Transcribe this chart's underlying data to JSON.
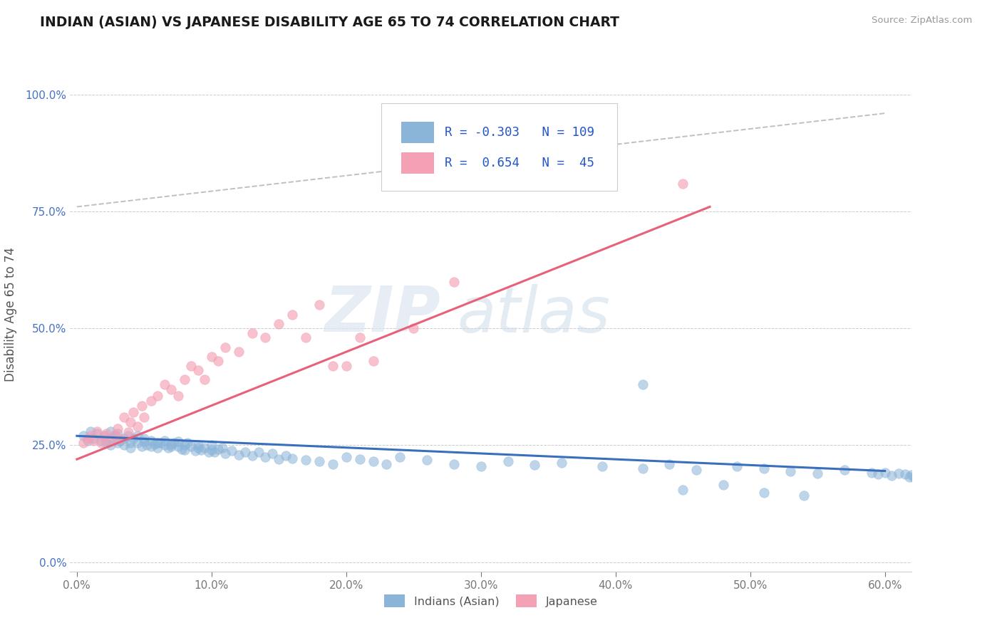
{
  "title": "INDIAN (ASIAN) VS JAPANESE DISABILITY AGE 65 TO 74 CORRELATION CHART",
  "source": "Source: ZipAtlas.com",
  "ylabel": "Disability Age 65 to 74",
  "xlim": [
    -0.005,
    0.62
  ],
  "ylim": [
    -0.02,
    1.08
  ],
  "xtick_labels": [
    "0.0%",
    "10.0%",
    "20.0%",
    "30.0%",
    "40.0%",
    "50.0%",
    "60.0%"
  ],
  "xtick_values": [
    0.0,
    0.1,
    0.2,
    0.3,
    0.4,
    0.5,
    0.6
  ],
  "ytick_labels": [
    "0.0%",
    "25.0%",
    "50.0%",
    "75.0%",
    "100.0%"
  ],
  "ytick_values": [
    0.0,
    0.25,
    0.5,
    0.75,
    1.0
  ],
  "blue_color": "#8ab4d8",
  "pink_color": "#f4a0b5",
  "blue_line_color": "#3a6fbd",
  "pink_line_color": "#e8607a",
  "watermark_zip": "ZIP",
  "watermark_atlas": "atlas",
  "legend_r_blue": "-0.303",
  "legend_n_blue": "109",
  "legend_r_pink": "0.654",
  "legend_n_pink": "45",
  "legend_label_blue": "Indians (Asian)",
  "legend_label_pink": "Japanese",
  "blue_trend_x": [
    0.0,
    0.6
  ],
  "blue_trend_y": [
    0.27,
    0.195
  ],
  "pink_trend_x": [
    0.0,
    0.47
  ],
  "pink_trend_y": [
    0.22,
    0.76
  ],
  "grey_trend_x": [
    0.0,
    0.6
  ],
  "grey_trend_y": [
    0.76,
    0.96
  ],
  "blue_scatter_x": [
    0.005,
    0.008,
    0.01,
    0.012,
    0.015,
    0.018,
    0.02,
    0.022,
    0.025,
    0.025,
    0.025,
    0.028,
    0.03,
    0.03,
    0.032,
    0.035,
    0.035,
    0.038,
    0.04,
    0.04,
    0.042,
    0.045,
    0.045,
    0.048,
    0.05,
    0.05,
    0.052,
    0.055,
    0.055,
    0.058,
    0.06,
    0.06,
    0.062,
    0.065,
    0.065,
    0.068,
    0.07,
    0.07,
    0.072,
    0.075,
    0.075,
    0.078,
    0.08,
    0.08,
    0.082,
    0.085,
    0.088,
    0.09,
    0.09,
    0.092,
    0.095,
    0.098,
    0.1,
    0.1,
    0.102,
    0.105,
    0.108,
    0.11,
    0.115,
    0.12,
    0.125,
    0.13,
    0.135,
    0.14,
    0.145,
    0.15,
    0.155,
    0.16,
    0.17,
    0.18,
    0.19,
    0.2,
    0.21,
    0.22,
    0.23,
    0.24,
    0.26,
    0.28,
    0.3,
    0.32,
    0.34,
    0.36,
    0.39,
    0.42,
    0.44,
    0.46,
    0.49,
    0.51,
    0.53,
    0.55,
    0.57,
    0.59,
    0.595,
    0.6,
    0.605,
    0.61,
    0.615,
    0.618,
    0.62,
    0.622,
    0.625,
    0.628,
    0.63,
    0.42,
    0.45,
    0.48,
    0.51,
    0.54
  ],
  "blue_scatter_y": [
    0.27,
    0.26,
    0.28,
    0.265,
    0.275,
    0.26,
    0.27,
    0.255,
    0.265,
    0.28,
    0.25,
    0.27,
    0.255,
    0.275,
    0.26,
    0.265,
    0.25,
    0.27,
    0.255,
    0.245,
    0.265,
    0.255,
    0.27,
    0.248,
    0.258,
    0.265,
    0.25,
    0.26,
    0.248,
    0.252,
    0.256,
    0.245,
    0.255,
    0.25,
    0.26,
    0.245,
    0.252,
    0.248,
    0.255,
    0.248,
    0.258,
    0.242,
    0.25,
    0.24,
    0.255,
    0.248,
    0.238,
    0.245,
    0.25,
    0.24,
    0.245,
    0.235,
    0.24,
    0.25,
    0.235,
    0.242,
    0.245,
    0.232,
    0.238,
    0.23,
    0.236,
    0.228,
    0.235,
    0.225,
    0.232,
    0.22,
    0.228,
    0.222,
    0.218,
    0.215,
    0.21,
    0.225,
    0.22,
    0.215,
    0.21,
    0.225,
    0.218,
    0.21,
    0.205,
    0.215,
    0.208,
    0.212,
    0.205,
    0.2,
    0.21,
    0.198,
    0.205,
    0.2,
    0.195,
    0.19,
    0.198,
    0.192,
    0.188,
    0.192,
    0.185,
    0.19,
    0.188,
    0.182,
    0.186,
    0.18,
    0.185,
    0.178,
    0.172,
    0.38,
    0.155,
    0.165,
    0.148,
    0.142
  ],
  "pink_scatter_x": [
    0.005,
    0.008,
    0.01,
    0.012,
    0.015,
    0.018,
    0.02,
    0.022,
    0.025,
    0.028,
    0.03,
    0.032,
    0.035,
    0.038,
    0.04,
    0.042,
    0.045,
    0.048,
    0.05,
    0.055,
    0.06,
    0.065,
    0.07,
    0.075,
    0.08,
    0.085,
    0.09,
    0.095,
    0.1,
    0.105,
    0.11,
    0.12,
    0.13,
    0.14,
    0.15,
    0.16,
    0.17,
    0.18,
    0.19,
    0.2,
    0.21,
    0.22,
    0.25,
    0.28,
    0.45
  ],
  "pink_scatter_y": [
    0.255,
    0.265,
    0.27,
    0.26,
    0.28,
    0.255,
    0.268,
    0.275,
    0.26,
    0.272,
    0.285,
    0.265,
    0.31,
    0.278,
    0.3,
    0.32,
    0.29,
    0.335,
    0.31,
    0.345,
    0.355,
    0.38,
    0.37,
    0.355,
    0.39,
    0.42,
    0.41,
    0.39,
    0.44,
    0.43,
    0.46,
    0.45,
    0.49,
    0.48,
    0.51,
    0.53,
    0.48,
    0.55,
    0.42,
    0.42,
    0.48,
    0.43,
    0.5,
    0.6,
    0.81
  ]
}
